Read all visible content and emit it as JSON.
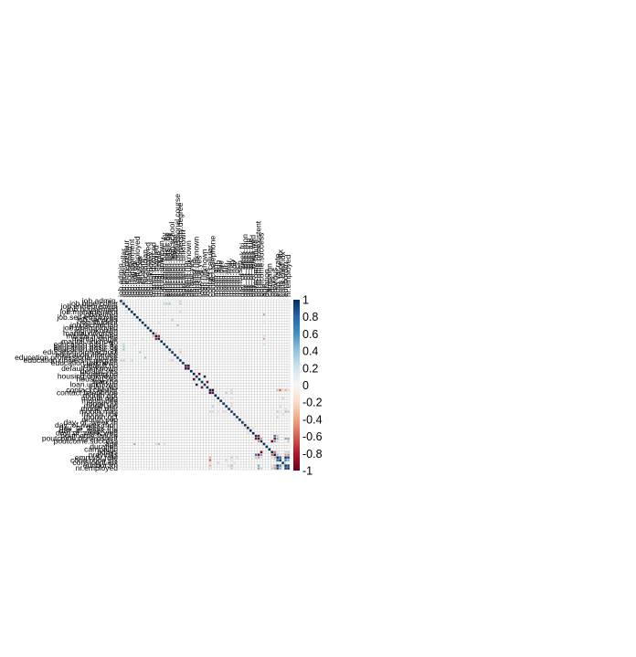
{
  "chart_data": {
    "type": "heatmap",
    "title": "",
    "xlabel": "",
    "ylabel": "",
    "variables": [
      "job.admin.",
      "job.blue-collar",
      "job.entrepreneur",
      "job.housemaid",
      "job.management",
      "job.retired",
      "job.self-employed",
      "job.services",
      "job.student",
      "job.technician",
      "job.unemployed",
      "job.unknown",
      "marital.divorced",
      "marital.married",
      "marital.single",
      "marital.unknown",
      "education.basic.4y",
      "education.basic.6y",
      "education.basic.9y",
      "education.high.school",
      "education.illiterate",
      "education.professional.course",
      "education.university.degree",
      "education.unknown",
      "default.no",
      "default.unknown",
      "default.yes",
      "housing.no",
      "housing.unknown",
      "housing.yes",
      "loan.no",
      "loan.unknown",
      "loan.yes",
      "contact.cellular",
      "contact.telephone",
      "month.apr",
      "month.aug",
      "month.dec",
      "month.jul",
      "month.jun",
      "month.mar",
      "month.may",
      "month.nov",
      "month.oct",
      "month.sep",
      "day_of_week.fri",
      "day_of_week.mon",
      "day_of_week.thu",
      "day_of_week.tue",
      "day_of_week.wed",
      "poutcome.failure",
      "poutcome.nonexistent",
      "poutcome.success",
      "age",
      "duration",
      "campaign",
      "pdays",
      "previous",
      "emp.var.rate",
      "cons.price.idx",
      "cons.conf.idx",
      "euribor3m",
      "nr.employed"
    ],
    "colorbar": {
      "ticks": [
        "1",
        "0.8",
        "0.6",
        "0.4",
        "0.2",
        "0",
        "-0.2",
        "-0.4",
        "-0.6",
        "-0.8",
        "-1"
      ],
      "range": [
        -1,
        1
      ],
      "colors": [
        "#67001f",
        "#b2182b",
        "#d6604d",
        "#f4a582",
        "#fddbc7",
        "#f7f7f7",
        "#d1e5f0",
        "#92c5de",
        "#4393c3",
        "#2166ac",
        "#053061"
      ]
    },
    "diagonal_value": 1,
    "grid": true,
    "cells": [
      {
        "x": "job.admin.",
        "y": "job.blue-collar",
        "value": -0.31
      },
      {
        "x": "job.admin.",
        "y": "education.university.degree",
        "value": 0.3
      },
      {
        "x": "job.blue-collar",
        "y": "education.basic.4y",
        "value": 0.3
      },
      {
        "x": "job.blue-collar",
        "y": "education.basic.6y",
        "value": 0.35
      },
      {
        "x": "job.blue-collar",
        "y": "education.basic.9y",
        "value": 0.4
      },
      {
        "x": "job.blue-collar",
        "y": "education.university.degree",
        "value": -0.35
      },
      {
        "x": "job.management",
        "y": "education.university.degree",
        "value": 0.3
      },
      {
        "x": "job.retired",
        "y": "age",
        "value": 0.45
      },
      {
        "x": "job.retired",
        "y": "education.basic.4y",
        "value": 0.2
      },
      {
        "x": "job.services",
        "y": "education.high.school",
        "value": 0.35
      },
      {
        "x": "job.student",
        "y": "marital.single",
        "value": 0.25
      },
      {
        "x": "job.student",
        "y": "age",
        "value": -0.2
      },
      {
        "x": "job.technician",
        "y": "education.professional.course",
        "value": 0.4
      },
      {
        "x": "marital.married",
        "y": "marital.single",
        "value": -0.77
      },
      {
        "x": "marital.divorced",
        "y": "marital.married",
        "value": -0.4
      },
      {
        "x": "marital.single",
        "y": "age",
        "value": -0.42
      },
      {
        "x": "marital.married",
        "y": "age",
        "value": 0.27
      },
      {
        "x": "education.basic.4y",
        "y": "age",
        "value": 0.25
      },
      {
        "x": "education.high.school",
        "y": "education.university.degree",
        "value": -0.34
      },
      {
        "x": "education.basic.9y",
        "y": "education.university.degree",
        "value": -0.25
      },
      {
        "x": "education.basic.9y",
        "y": "education.high.school",
        "value": -0.22
      },
      {
        "x": "default.no",
        "y": "default.unknown",
        "value": -1.0
      },
      {
        "x": "housing.no",
        "y": "housing.yes",
        "value": -0.95
      },
      {
        "x": "housing.unknown",
        "y": "loan.unknown",
        "value": 1.0
      },
      {
        "x": "loan.no",
        "y": "loan.yes",
        "value": -0.91
      },
      {
        "x": "contact.cellular",
        "y": "contact.telephone",
        "value": -1.0
      },
      {
        "x": "contact.cellular",
        "y": "month.may",
        "value": -0.3
      },
      {
        "x": "contact.telephone",
        "y": "month.may",
        "value": 0.3
      },
      {
        "x": "contact.telephone",
        "y": "month.jun",
        "value": 0.35
      },
      {
        "x": "contact.cellular",
        "y": "emp.var.rate",
        "value": -0.39
      },
      {
        "x": "contact.cellular",
        "y": "cons.price.idx",
        "value": -0.59
      },
      {
        "x": "contact.cellular",
        "y": "euribor3m",
        "value": -0.4
      },
      {
        "x": "contact.cellular",
        "y": "nr.employed",
        "value": -0.27
      },
      {
        "x": "contact.cellular",
        "y": "cons.conf.idx",
        "value": -0.25
      },
      {
        "x": "month.may",
        "y": "emp.var.rate",
        "value": 0.35
      },
      {
        "x": "month.may",
        "y": "euribor3m",
        "value": 0.4
      },
      {
        "x": "month.may",
        "y": "nr.employed",
        "value": 0.35
      },
      {
        "x": "month.may",
        "y": "cons.price.idx",
        "value": -0.2
      },
      {
        "x": "month.jun",
        "y": "cons.price.idx",
        "value": 0.3
      },
      {
        "x": "month.aug",
        "y": "cons.conf.idx",
        "value": 0.3
      },
      {
        "x": "month.aug",
        "y": "month.may",
        "value": -0.25
      },
      {
        "x": "month.jul",
        "y": "month.may",
        "value": -0.3
      },
      {
        "x": "month.jun",
        "y": "month.may",
        "value": -0.25
      },
      {
        "x": "month.aug",
        "y": "month.jul",
        "value": -0.2
      },
      {
        "x": "month.nov",
        "y": "cons.conf.idx",
        "value": -0.25
      },
      {
        "x": "month.oct",
        "y": "emp.var.rate",
        "value": -0.3
      },
      {
        "x": "month.mar",
        "y": "euribor3m",
        "value": -0.25
      },
      {
        "x": "day_of_week.mon",
        "y": "day_of_week.thu",
        "value": -0.25
      },
      {
        "x": "day_of_week.thu",
        "y": "day_of_week.tue",
        "value": -0.25
      },
      {
        "x": "day_of_week.fri",
        "y": "day_of_week.mon",
        "value": -0.23
      },
      {
        "x": "day_of_week.wed",
        "y": "day_of_week.thu",
        "value": -0.25
      },
      {
        "x": "poutcome.failure",
        "y": "poutcome.nonexistent",
        "value": -0.85
      },
      {
        "x": "poutcome.nonexistent",
        "y": "poutcome.success",
        "value": -0.47
      },
      {
        "x": "poutcome.failure",
        "y": "previous",
        "value": 0.7
      },
      {
        "x": "poutcome.nonexistent",
        "y": "previous",
        "value": -0.88
      },
      {
        "x": "poutcome.success",
        "y": "pdays",
        "value": -0.95
      },
      {
        "x": "poutcome.success",
        "y": "previous",
        "value": 0.52
      },
      {
        "x": "poutcome.nonexistent",
        "y": "emp.var.rate",
        "value": 0.47
      },
      {
        "x": "poutcome.nonexistent",
        "y": "euribor3m",
        "value": 0.49
      },
      {
        "x": "poutcome.nonexistent",
        "y": "nr.employed",
        "value": 0.49
      },
      {
        "x": "poutcome.failure",
        "y": "emp.var.rate",
        "value": -0.38
      },
      {
        "x": "poutcome.success",
        "y": "emp.var.rate",
        "value": -0.26
      },
      {
        "x": "poutcome.success",
        "y": "nr.employed",
        "value": -0.35
      },
      {
        "x": "pdays",
        "y": "previous",
        "value": -0.59
      },
      {
        "x": "pdays",
        "y": "emp.var.rate",
        "value": 0.27
      },
      {
        "x": "pdays",
        "y": "euribor3m",
        "value": 0.3
      },
      {
        "x": "pdays",
        "y": "nr.employed",
        "value": 0.37
      },
      {
        "x": "previous",
        "y": "emp.var.rate",
        "value": -0.42
      },
      {
        "x": "previous",
        "y": "euribor3m",
        "value": -0.45
      },
      {
        "x": "previous",
        "y": "nr.employed",
        "value": -0.5
      },
      {
        "x": "previous",
        "y": "cons.price.idx",
        "value": -0.2
      },
      {
        "x": "campaign",
        "y": "emp.var.rate",
        "value": 0.15
      },
      {
        "x": "emp.var.rate",
        "y": "cons.price.idx",
        "value": 0.78
      },
      {
        "x": "emp.var.rate",
        "y": "euribor3m",
        "value": 0.97
      },
      {
        "x": "emp.var.rate",
        "y": "nr.employed",
        "value": 0.91
      },
      {
        "x": "emp.var.rate",
        "y": "cons.conf.idx",
        "value": 0.2
      },
      {
        "x": "cons.price.idx",
        "y": "euribor3m",
        "value": 0.69
      },
      {
        "x": "cons.price.idx",
        "y": "nr.employed",
        "value": 0.52
      },
      {
        "x": "cons.conf.idx",
        "y": "euribor3m",
        "value": 0.28
      },
      {
        "x": "euribor3m",
        "y": "nr.employed",
        "value": 0.95
      }
    ]
  }
}
